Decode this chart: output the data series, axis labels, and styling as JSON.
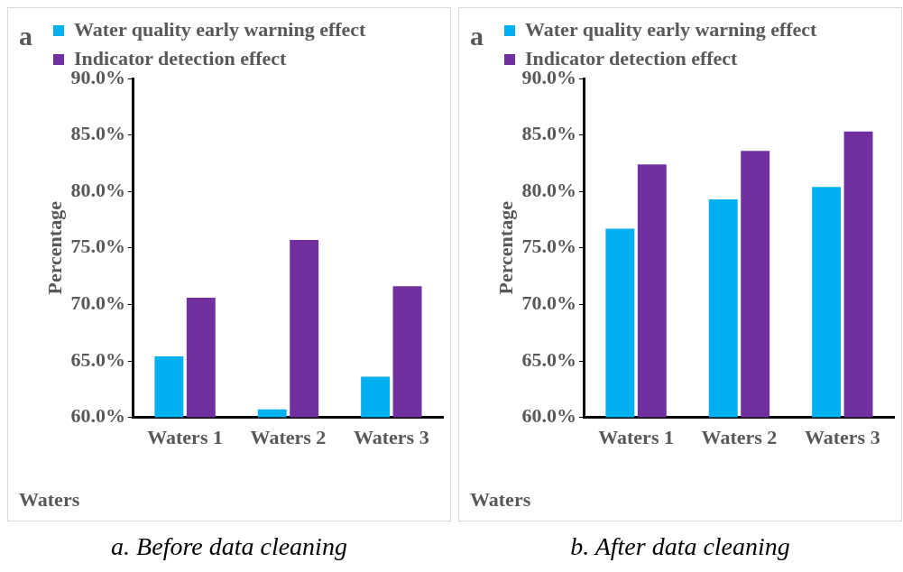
{
  "chart_data": [
    {
      "type": "bar",
      "categories": [
        "Waters 1",
        "Waters 2",
        "Waters 3"
      ],
      "xlabel": "Waters",
      "ylabel": "Percentage",
      "legend": "top left",
      "grid": false,
      "series": [
        {
          "name": "Water quality early warning effect",
          "color": "#00b0f0",
          "values": [
            65.4,
            60.7,
            63.6
          ]
        },
        {
          "name": "Indicator detection effect",
          "color": "#7030a0",
          "values": [
            70.6,
            75.7,
            71.6
          ]
        }
      ],
      "ylim": [
        60,
        90
      ],
      "yticks": [
        {
          "value": 60,
          "label": "60.0%"
        },
        {
          "value": 65,
          "label": "65.0%"
        },
        {
          "value": 70,
          "label": "70.0%"
        },
        {
          "value": 75,
          "label": "75.0%"
        },
        {
          "value": 80,
          "label": "80.0%"
        },
        {
          "value": 85,
          "label": "85.0%"
        },
        {
          "value": 90,
          "label": "90.0%"
        }
      ],
      "annotations": [
        "a",
        "a. Before data cleaning"
      ]
    },
    {
      "type": "bar",
      "categories": [
        "Waters 1",
        "Waters 2",
        "Waters 3"
      ],
      "xlabel": "Waters",
      "ylabel": "Percentage",
      "legend": "top left",
      "grid": false,
      "series": [
        {
          "name": "Water quality early warning effect",
          "color": "#00b0f0",
          "values": [
            76.7,
            79.3,
            80.4
          ]
        },
        {
          "name": "Indicator detection effect",
          "color": "#7030a0",
          "values": [
            82.4,
            83.6,
            85.3
          ]
        }
      ],
      "ylim": [
        60,
        90
      ],
      "yticks": [
        {
          "value": 60,
          "label": "60.0%"
        },
        {
          "value": 65,
          "label": "65.0%"
        },
        {
          "value": 70,
          "label": "70.0%"
        },
        {
          "value": 75,
          "label": "75.0%"
        },
        {
          "value": 80,
          "label": "80.0%"
        },
        {
          "value": 85,
          "label": "85.0%"
        },
        {
          "value": 90,
          "label": "90.0%"
        }
      ],
      "annotations": [
        "a",
        "b. After data cleaning"
      ]
    }
  ]
}
